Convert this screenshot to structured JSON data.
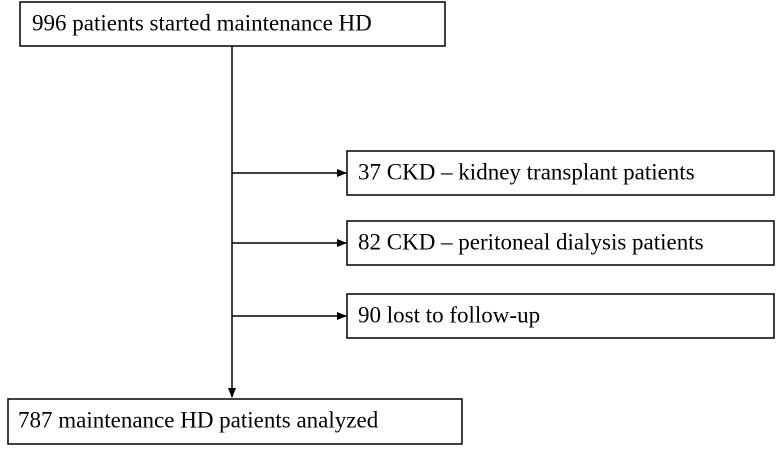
{
  "nodes": [
    {
      "label": "996 patients started maintenance HD"
    },
    {
      "label": "37 CKD – kidney transplant patients"
    },
    {
      "label": "82 CKD – peritoneal dialysis patients"
    },
    {
      "label": "90 lost to follow-up"
    },
    {
      "label": "787 maintenance HD patients analyzed"
    }
  ]
}
